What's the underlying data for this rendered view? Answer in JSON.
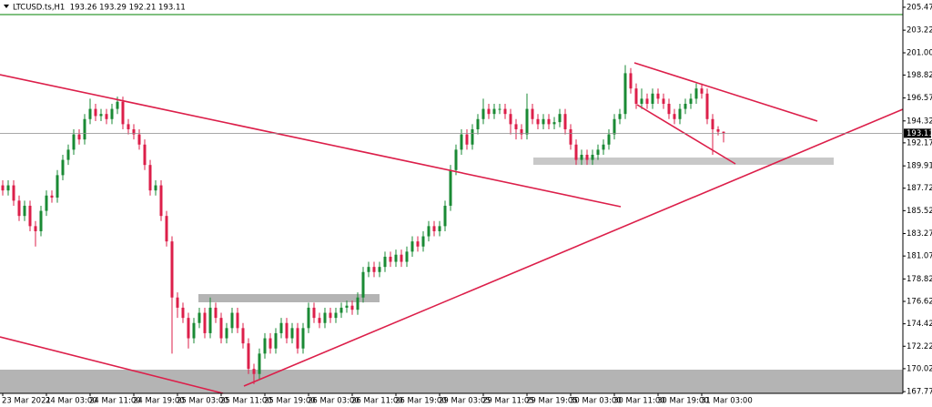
{
  "chart_data": {
    "type": "candlestick",
    "title": "LTCUSD.ts,H1  193.26 193.29 192.21 193.11",
    "categories": [
      "23 Mar 2021",
      null,
      null,
      null,
      null,
      null,
      null,
      null,
      "24 Mar 03:00",
      null,
      null,
      null,
      null,
      null,
      null,
      null,
      "24 Mar 11:00",
      null,
      null,
      null,
      null,
      null,
      null,
      null,
      "24 Mar 19:00",
      null,
      null,
      null,
      null,
      null,
      null,
      null,
      "25 Mar 03:00",
      null,
      null,
      null,
      null,
      null,
      null,
      null,
      "25 Mar 11:00",
      null,
      null,
      null,
      null,
      null,
      null,
      null,
      "25 Mar 19:00",
      null,
      null,
      null,
      null,
      null,
      null,
      null,
      "26 Mar 03:00",
      null,
      null,
      null,
      null,
      null,
      null,
      null,
      "26 Mar 11:00",
      null,
      null,
      null,
      null,
      null,
      null,
      null,
      "26 Mar 19:00",
      null,
      null,
      null,
      null,
      null,
      null,
      null,
      "29 Mar 03:05",
      null,
      null,
      null,
      null,
      null,
      null,
      null,
      "29 Mar 11:05",
      null,
      null,
      null,
      null,
      null,
      null,
      null,
      "29 Mar 19:05",
      null,
      null,
      null,
      null,
      null,
      null,
      null,
      "30 Mar 03:00",
      null,
      null,
      null,
      null,
      null,
      null,
      null,
      "30 Mar 11:00",
      null,
      null,
      null,
      null,
      null,
      null,
      null,
      "30 Mar 19:00",
      null,
      null,
      null,
      null,
      null,
      null,
      null,
      "31 Mar 03:00",
      null,
      null,
      null,
      null
    ],
    "open": [
      188.0,
      187.5,
      188.0,
      186.5,
      185.0,
      186.0,
      184.0,
      183.5,
      185.5,
      187.0,
      186.8,
      189.0,
      190.5,
      191.5,
      193.0,
      192.5,
      194.5,
      195.5,
      194.8,
      195.0,
      194.5,
      195.5,
      196.2,
      194.0,
      193.5,
      193.0,
      192.0,
      190.0,
      187.5,
      188.0,
      185.0,
      182.5,
      177.0,
      176.0,
      175.0,
      173.0,
      174.5,
      175.5,
      173.5,
      176.0,
      175.0,
      173.0,
      174.0,
      175.5,
      174.0,
      172.5,
      170.0,
      169.5,
      171.5,
      173.0,
      172.0,
      173.5,
      174.5,
      173.0,
      174.0,
      172.0,
      174.0,
      176.0,
      175.0,
      174.5,
      175.5,
      175.0,
      175.5,
      176.0,
      176.2,
      175.8,
      177.0,
      179.5,
      180.0,
      179.5,
      180.0,
      181.0,
      180.5,
      181.2,
      180.5,
      181.5,
      182.5,
      182.0,
      183.0,
      184.0,
      183.5,
      184.0,
      186.0,
      189.5,
      191.5,
      193.0,
      192.0,
      193.5,
      194.5,
      195.5,
      195.0,
      195.5,
      195.5,
      195.0,
      194.0,
      193.5,
      193.0,
      195.5,
      194.5,
      194.0,
      194.5,
      194.0,
      194.2,
      195.0,
      193.5,
      192.0,
      190.5,
      191.0,
      190.5,
      191.0,
      191.5,
      192.0,
      193.0,
      194.5,
      195.0,
      199.0,
      197.5,
      196.0,
      196.5,
      196.0,
      197.0,
      196.5,
      196.0,
      195.0,
      194.5,
      195.5,
      196.0,
      196.5,
      197.5,
      197.0,
      194.5,
      193.5,
      193.26
    ],
    "high": [
      188.5,
      188.5,
      188.5,
      187.0,
      186.5,
      186.5,
      184.5,
      186.0,
      187.5,
      187.5,
      189.5,
      191.0,
      192.0,
      193.5,
      193.5,
      195.0,
      196.5,
      196.0,
      195.5,
      195.5,
      196.0,
      196.7,
      196.7,
      194.5,
      194.0,
      193.5,
      192.5,
      190.5,
      188.5,
      188.5,
      185.5,
      183.0,
      177.5,
      176.5,
      175.5,
      175.0,
      176.0,
      176.0,
      177.0,
      176.5,
      175.5,
      174.5,
      176.0,
      176.0,
      174.5,
      173.0,
      170.5,
      172.0,
      173.5,
      173.5,
      174.0,
      175.0,
      175.0,
      174.5,
      174.5,
      174.5,
      176.5,
      176.5,
      175.5,
      176.0,
      176.0,
      176.0,
      176.5,
      176.7,
      176.7,
      177.5,
      180.0,
      180.5,
      180.5,
      180.5,
      181.5,
      181.5,
      181.7,
      181.7,
      182.0,
      183.0,
      183.0,
      183.5,
      184.5,
      184.5,
      184.5,
      186.5,
      190.0,
      192.0,
      193.5,
      193.5,
      194.0,
      195.0,
      196.5,
      196.0,
      196.0,
      196.0,
      196.0,
      195.5,
      194.5,
      194.0,
      197.0,
      196.0,
      195.0,
      195.0,
      195.0,
      194.7,
      195.5,
      195.5,
      194.0,
      192.5,
      191.5,
      191.5,
      191.5,
      192.0,
      192.5,
      193.5,
      195.0,
      195.5,
      199.8,
      199.5,
      198.0,
      197.5,
      197.0,
      197.5,
      197.5,
      197.0,
      196.5,
      195.5,
      196.0,
      196.5,
      197.0,
      198.0,
      198.0,
      197.5,
      195.0,
      193.8,
      193.29
    ],
    "low": [
      187.0,
      187.0,
      186.0,
      184.5,
      184.5,
      183.5,
      182.0,
      183.0,
      185.0,
      186.3,
      186.3,
      188.5,
      190.0,
      191.0,
      192.0,
      192.0,
      194.0,
      194.3,
      194.3,
      194.0,
      194.0,
      195.0,
      193.5,
      193.0,
      192.5,
      191.5,
      189.5,
      187.0,
      187.0,
      184.5,
      182.0,
      171.5,
      175.0,
      174.5,
      172.0,
      172.5,
      174.0,
      173.0,
      173.0,
      174.5,
      172.5,
      172.5,
      173.5,
      173.5,
      172.0,
      169.5,
      168.5,
      169.0,
      171.0,
      171.5,
      171.5,
      173.0,
      172.5,
      172.5,
      171.5,
      171.5,
      173.5,
      174.5,
      174.0,
      174.0,
      174.5,
      174.5,
      175.0,
      175.5,
      175.3,
      175.3,
      176.5,
      179.0,
      179.0,
      179.0,
      179.5,
      180.0,
      180.0,
      180.0,
      180.0,
      181.0,
      181.5,
      181.5,
      182.5,
      183.0,
      183.0,
      183.5,
      185.5,
      189.0,
      191.0,
      191.5,
      191.5,
      193.0,
      194.0,
      194.5,
      194.5,
      195.0,
      194.5,
      193.0,
      192.5,
      192.5,
      192.5,
      194.0,
      193.5,
      193.5,
      193.5,
      193.5,
      193.7,
      193.0,
      191.5,
      190.0,
      190.0,
      190.0,
      190.0,
      190.5,
      191.0,
      191.5,
      192.5,
      194.0,
      194.5,
      197.0,
      195.5,
      195.5,
      195.5,
      195.5,
      196.0,
      195.5,
      194.5,
      194.0,
      194.0,
      195.0,
      195.5,
      196.0,
      196.5,
      194.0,
      191.0,
      192.9,
      192.21
    ],
    "close": [
      187.5,
      188.0,
      186.5,
      185.0,
      186.0,
      184.0,
      183.5,
      185.5,
      187.0,
      186.8,
      189.0,
      190.5,
      191.5,
      193.0,
      192.5,
      194.5,
      195.5,
      194.8,
      195.0,
      194.5,
      195.5,
      196.2,
      194.0,
      193.5,
      193.0,
      192.0,
      190.0,
      187.5,
      188.0,
      185.0,
      182.5,
      177.0,
      176.0,
      175.0,
      173.0,
      174.5,
      175.5,
      173.5,
      176.0,
      175.0,
      173.0,
      174.0,
      175.5,
      174.0,
      172.5,
      170.0,
      169.5,
      171.5,
      173.0,
      172.0,
      173.5,
      174.5,
      173.0,
      174.0,
      172.0,
      174.0,
      176.0,
      175.0,
      174.5,
      175.5,
      175.0,
      175.5,
      176.0,
      176.2,
      175.8,
      177.0,
      179.5,
      180.0,
      179.5,
      180.0,
      181.0,
      180.5,
      181.2,
      180.5,
      181.5,
      182.5,
      182.0,
      183.0,
      184.0,
      183.5,
      184.0,
      186.0,
      189.5,
      191.5,
      193.0,
      192.0,
      193.5,
      194.5,
      195.5,
      195.0,
      195.5,
      195.5,
      195.0,
      194.0,
      193.5,
      193.0,
      195.5,
      194.5,
      194.0,
      194.5,
      194.0,
      194.2,
      195.0,
      193.5,
      192.0,
      190.5,
      191.0,
      190.5,
      191.0,
      191.5,
      192.0,
      193.0,
      194.5,
      195.0,
      199.0,
      197.5,
      196.0,
      196.5,
      196.0,
      197.0,
      196.5,
      196.0,
      195.0,
      194.5,
      195.5,
      196.0,
      196.5,
      197.5,
      197.0,
      194.5,
      193.5,
      193.26,
      193.11
    ],
    "up_color": "#1a8a34",
    "down_color": "#dc1f4a",
    "ylim": [
      167.6,
      206.18
    ],
    "yticks": [
      205.47,
      203.22,
      {
        "value": 201,
        "label": "201.00"
      },
      198.82,
      196.57,
      194.32,
      192.17,
      189.91,
      187.72,
      185.52,
      183.27,
      181.07,
      178.82,
      176.62,
      174.42,
      172.22,
      170.02,
      167.77
    ],
    "current_price": 193.11
  }
}
